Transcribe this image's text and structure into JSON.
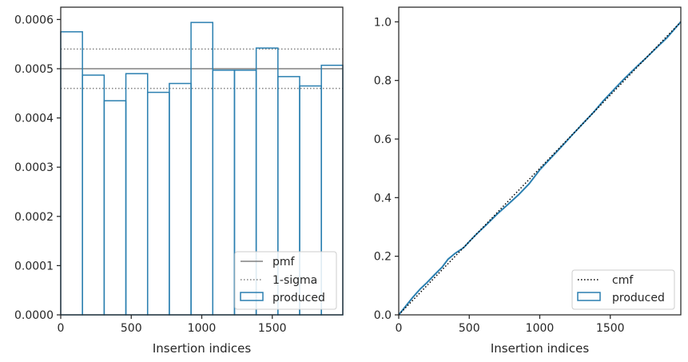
{
  "colors": {
    "hist": "#2a7fb0",
    "pmf": "#808080",
    "sigma": "#808080",
    "cmf": "#000000",
    "frame": "#262626"
  },
  "chart_data": [
    {
      "type": "histogram-step",
      "xlabel": "Insertion indices",
      "ylabel": "",
      "xlim": [
        0,
        2000
      ],
      "ylim": [
        0,
        0.000625
      ],
      "xticks": [
        0,
        500,
        1000,
        1500
      ],
      "xtick_labels": [
        "0",
        "500",
        "1000",
        "1500"
      ],
      "yticks": [
        0,
        0.0001,
        0.0002,
        0.0003,
        0.0004,
        0.0005,
        0.0006
      ],
      "ytick_labels": [
        "0.0000",
        "0.0001",
        "0.0002",
        "0.0003",
        "0.0004",
        "0.0005",
        "0.0006"
      ],
      "bin_edges": [
        0,
        154,
        308,
        462,
        616,
        770,
        924,
        1078,
        1232,
        1386,
        1540,
        1694,
        1848,
        2000
      ],
      "values": [
        0.000575,
        0.000487,
        0.000435,
        0.00049,
        0.000452,
        0.00047,
        0.000594,
        0.000497,
        0.000497,
        0.000542,
        0.000484,
        0.000465,
        0.000507
      ],
      "pmf": 0.0005,
      "sigma_band": [
        0.00046,
        0.00054
      ],
      "legend": {
        "position": "lower right",
        "entries": [
          "pmf",
          "1-sigma",
          "produced"
        ]
      }
    },
    {
      "type": "line",
      "xlabel": "Insertion indices",
      "ylabel": "",
      "xlim": [
        0,
        2000
      ],
      "ylim": [
        0,
        1.05
      ],
      "xticks": [
        0,
        500,
        1000,
        1500
      ],
      "xtick_labels": [
        "0",
        "500",
        "1000",
        "1500"
      ],
      "yticks": [
        0,
        0.2,
        0.4,
        0.6,
        0.8,
        1.0
      ],
      "ytick_labels": [
        "0.0",
        "0.2",
        "0.4",
        "0.6",
        "0.8",
        "1.0"
      ],
      "series": [
        {
          "name": "cmf",
          "x": [
            0,
            2000
          ],
          "y": [
            0,
            1.0
          ]
        },
        {
          "name": "produced",
          "x": [
            0,
            50,
            100,
            154,
            200,
            250,
            308,
            350,
            400,
            462,
            500,
            550,
            616,
            700,
            770,
            850,
            924,
            1000,
            1078,
            1150,
            1232,
            1300,
            1386,
            1450,
            1540,
            1600,
            1694,
            1750,
            1848,
            1900,
            2000
          ],
          "y": [
            0,
            0.03,
            0.06,
            0.089,
            0.11,
            0.135,
            0.163,
            0.19,
            0.21,
            0.23,
            0.25,
            0.275,
            0.305,
            0.345,
            0.375,
            0.41,
            0.447,
            0.495,
            0.535,
            0.572,
            0.615,
            0.65,
            0.694,
            0.73,
            0.776,
            0.806,
            0.85,
            0.875,
            0.921,
            0.945,
            1.0
          ]
        }
      ],
      "legend": {
        "position": "lower right",
        "entries": [
          "cmf",
          "produced"
        ]
      }
    }
  ]
}
